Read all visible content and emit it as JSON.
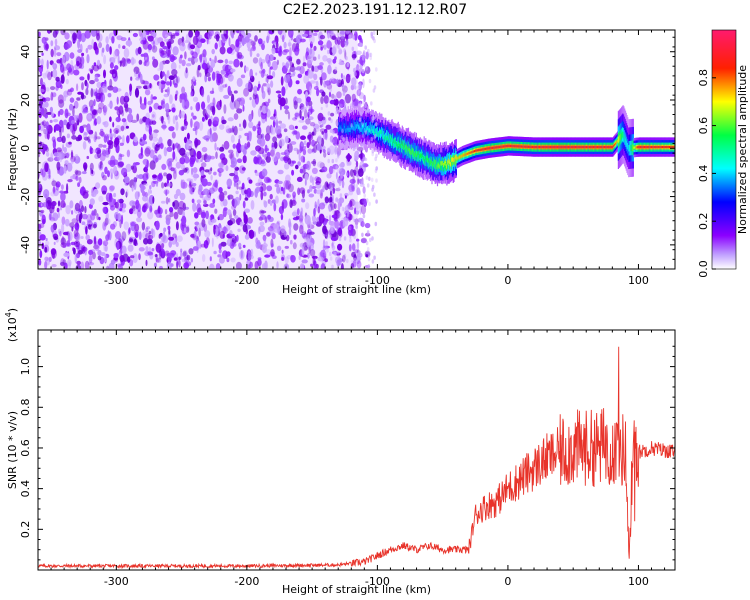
{
  "title": "C2E2.2023.191.12.12.R07",
  "chart_data": [
    {
      "type": "heatmap",
      "title": "C2E2.2023.191.12.12.R07",
      "xlabel": "Height of straight line (km)",
      "ylabel": "Frequency (Hz)",
      "xlim": [
        -360,
        128
      ],
      "ylim": [
        -50,
        49
      ],
      "x_ticks": [
        -300,
        -200,
        -100,
        0,
        100
      ],
      "y_ticks": [
        -40,
        -20,
        0,
        20,
        40
      ],
      "colorbar": {
        "label": "Normalized spectral amplitude",
        "range": [
          0.0,
          1.0
        ],
        "ticks": [
          0.0,
          0.2,
          0.4,
          0.6,
          0.8
        ],
        "colors": [
          "#ffffff",
          "#8b00ff",
          "#0000ff",
          "#00ffff",
          "#00ff00",
          "#ffff00",
          "#ff0000",
          "#ff0066"
        ]
      },
      "noise_region_x": [
        -360,
        -115
      ],
      "ridge": {
        "x": [
          -130,
          -115,
          -105,
          -95,
          -85,
          -75,
          -65,
          -55,
          -45,
          -35,
          -25,
          -15,
          0,
          20,
          40,
          60,
          80,
          88,
          92,
          100,
          128
        ],
        "y": [
          8,
          9,
          8,
          5,
          2,
          -1,
          -4,
          -7,
          -6,
          -3,
          -1,
          0,
          1,
          0.5,
          0.5,
          0.5,
          0.5,
          6,
          0,
          0.5,
          0.5
        ],
        "amplitude": [
          0.35,
          0.4,
          0.45,
          0.5,
          0.55,
          0.6,
          0.55,
          0.6,
          0.7,
          0.75,
          0.85,
          0.9,
          0.9,
          0.9,
          0.92,
          0.9,
          0.9,
          0.5,
          0.4,
          0.9,
          0.85
        ]
      }
    },
    {
      "type": "line",
      "xlabel": "Height of straight line (km)",
      "ylabel": "SNR (10 * v/v)",
      "y_multiplier": "(x10^4)",
      "xlim": [
        -360,
        128
      ],
      "ylim": [
        0,
        1.18
      ],
      "x_ticks": [
        -300,
        -200,
        -100,
        0,
        100
      ],
      "y_ticks": [
        0.2,
        0.4,
        0.6,
        0.8,
        1.0
      ],
      "color": "#e8332a",
      "series": [
        {
          "x": [
            -360,
            -300,
            -200,
            -130,
            -110,
            -100,
            -90,
            -80,
            -70,
            -60,
            -50,
            -40,
            -30,
            -25,
            -20,
            -15,
            -10,
            -5,
            0,
            10,
            20,
            30,
            40,
            50,
            60,
            70,
            75,
            80,
            85,
            90,
            93,
            96,
            100,
            110,
            128
          ],
          "y": [
            0.02,
            0.02,
            0.02,
            0.025,
            0.04,
            0.07,
            0.1,
            0.12,
            0.1,
            0.12,
            0.1,
            0.1,
            0.1,
            0.27,
            0.3,
            0.32,
            0.33,
            0.36,
            0.4,
            0.45,
            0.5,
            0.55,
            0.58,
            0.6,
            0.6,
            0.6,
            0.62,
            0.6,
            0.58,
            0.6,
            0.05,
            0.58,
            0.58,
            0.6,
            0.58
          ]
        }
      ]
    }
  ]
}
